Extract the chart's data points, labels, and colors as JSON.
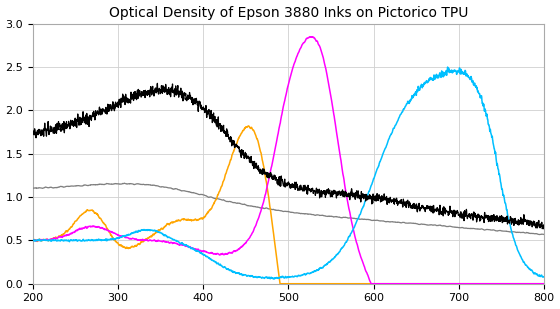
{
  "title": "Optical Density of Epson 3880 Inks on Pictorico TPU",
  "xlim": [
    200,
    800
  ],
  "ylim": [
    0,
    3
  ],
  "xticks": [
    200,
    300,
    400,
    500,
    600,
    700,
    800
  ],
  "yticks": [
    0,
    0.5,
    1.0,
    1.5,
    2.0,
    2.5,
    3
  ],
  "bg_color": "#ffffff",
  "colors": {
    "black": "#000000",
    "gray": "#7f7f7f",
    "cyan": "#00bfff",
    "magenta": "#ff00ff",
    "yellow": "#ffa500"
  },
  "figsize": [
    5.6,
    3.09
  ],
  "dpi": 100
}
